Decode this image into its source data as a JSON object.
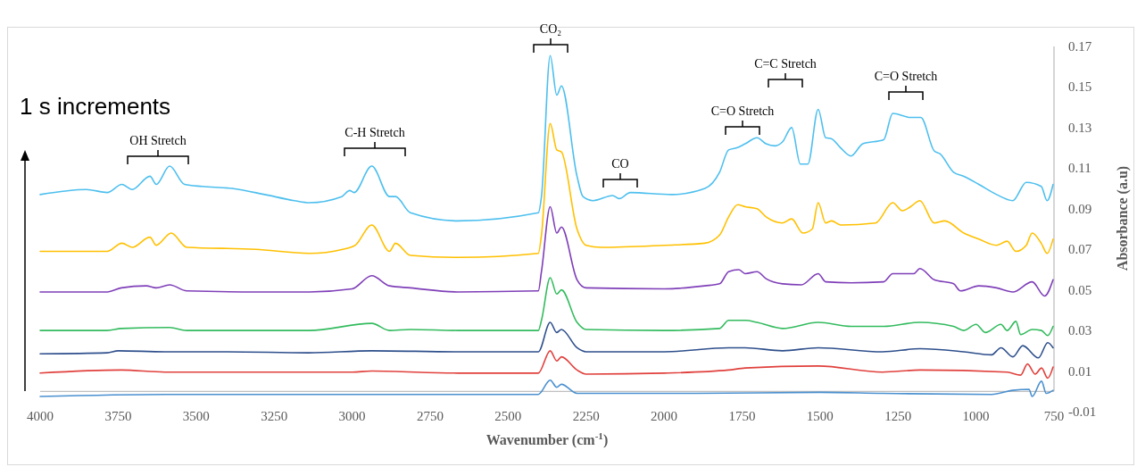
{
  "chart_data": {
    "type": "line",
    "xlabel": "Wavenumber (cm$^{-1}$)",
    "ylabel": "Absorbance (a.u)",
    "xlim": [
      4000,
      750
    ],
    "xticks": [
      4000,
      3750,
      3500,
      3250,
      3000,
      2750,
      2500,
      2250,
      2000,
      1750,
      1500,
      1250,
      1000,
      750
    ],
    "ylim": [
      -0.01,
      0.17
    ],
    "yticks": [
      -0.01,
      0.01,
      0.03,
      0.05,
      0.07,
      0.09,
      0.11,
      0.13,
      0.15,
      0.17
    ],
    "grid": false,
    "marker": "none",
    "line_style": "solid",
    "annotations": [
      "1 s increments",
      "OH Stretch",
      "C-H Stretch",
      "CO₂",
      "CO",
      "C=O Stretch",
      "C=C Stretch",
      "C=O Stretch"
    ],
    "series": [
      {
        "color": "#4dbfee",
        "x": [
          4000,
          3852,
          3785,
          3738,
          3705,
          3648,
          3628,
          3585,
          3537,
          3480,
          3385,
          3280,
          3185,
          3137,
          3033,
          3008,
          2994,
          2937,
          2880,
          2861,
          2813,
          2661,
          2403,
          2393,
          2365,
          2344,
          2329,
          2279,
          2260,
          2227,
          2165,
          2144,
          2108,
          1975,
          1869,
          1822,
          1793,
          1767,
          1740,
          1702,
          1673,
          1644,
          1620,
          1591,
          1563,
          1539,
          1506,
          1482,
          1463,
          1434,
          1401,
          1363,
          1296,
          1267,
          1210,
          1177,
          1134,
          1115,
          1072,
          1039,
          991,
          934,
          882,
          839,
          791,
          772,
          753
        ],
        "values": [
          0.097,
          0.0995,
          0.098,
          0.102,
          0.0995,
          0.106,
          0.102,
          0.111,
          0.102,
          0.101,
          0.1,
          0.097,
          0.094,
          0.093,
          0.096,
          0.099,
          0.098,
          0.111,
          0.096,
          0.096,
          0.088,
          0.084,
          0.088,
          0.096,
          0.1655,
          0.146,
          0.1505,
          0.106,
          0.096,
          0.094,
          0.0965,
          0.095,
          0.098,
          0.097,
          0.1,
          0.108,
          0.119,
          0.12,
          0.122,
          0.125,
          0.122,
          0.121,
          0.123,
          0.13,
          0.112,
          0.112,
          0.139,
          0.125,
          0.1245,
          0.12,
          0.116,
          0.122,
          0.124,
          0.137,
          0.135,
          0.135,
          0.1185,
          0.117,
          0.108,
          0.106,
          0.102,
          0.097,
          0.094,
          0.103,
          0.101,
          0.094,
          0.102
        ]
      },
      {
        "color": "#ffc000",
        "x": [
          4000,
          3785,
          3738,
          3705,
          3648,
          3628,
          3580,
          3530,
          3309,
          3137,
          3030,
          2990,
          2937,
          2880,
          2861,
          2813,
          2661,
          2403,
          2393,
          2365,
          2344,
          2329,
          2279,
          2250,
          2200,
          2000,
          1870,
          1822,
          1793,
          1764,
          1740,
          1702,
          1673,
          1620,
          1591,
          1555,
          1525,
          1506,
          1482,
          1463,
          1434,
          1322,
          1267,
          1236,
          1210,
          1180,
          1134,
          1100,
          1039,
          991,
          934,
          900,
          872,
          839,
          820,
          791,
          772,
          753
        ],
        "values": [
          0.069,
          0.069,
          0.073,
          0.071,
          0.076,
          0.072,
          0.078,
          0.071,
          0.07,
          0.068,
          0.07,
          0.072,
          0.082,
          0.069,
          0.073,
          0.067,
          0.066,
          0.068,
          0.077,
          0.132,
          0.119,
          0.118,
          0.08,
          0.072,
          0.071,
          0.072,
          0.073,
          0.077,
          0.086,
          0.092,
          0.091,
          0.09,
          0.086,
          0.083,
          0.085,
          0.078,
          0.08,
          0.093,
          0.083,
          0.084,
          0.082,
          0.083,
          0.093,
          0.089,
          0.091,
          0.094,
          0.083,
          0.084,
          0.078,
          0.075,
          0.072,
          0.074,
          0.069,
          0.072,
          0.078,
          0.073,
          0.068,
          0.075
        ]
      },
      {
        "color": "#7f3fb8",
        "x": [
          4000,
          3785,
          3740,
          3660,
          3628,
          3585,
          3530,
          3300,
          3137,
          3000,
          2937,
          2880,
          2813,
          2661,
          2403,
          2393,
          2365,
          2344,
          2329,
          2279,
          2250,
          2000,
          1870,
          1822,
          1793,
          1760,
          1740,
          1702,
          1673,
          1620,
          1560,
          1506,
          1482,
          1400,
          1296,
          1267,
          1200,
          1180,
          1134,
          1072,
          1050,
          991,
          934,
          882,
          820,
          780,
          753
        ],
        "values": [
          0.049,
          0.049,
          0.051,
          0.052,
          0.051,
          0.0525,
          0.0495,
          0.049,
          0.049,
          0.0505,
          0.057,
          0.052,
          0.051,
          0.049,
          0.0495,
          0.059,
          0.091,
          0.078,
          0.081,
          0.055,
          0.051,
          0.0505,
          0.052,
          0.053,
          0.059,
          0.06,
          0.058,
          0.059,
          0.0555,
          0.053,
          0.0525,
          0.058,
          0.054,
          0.0535,
          0.054,
          0.058,
          0.058,
          0.0605,
          0.055,
          0.053,
          0.0495,
          0.052,
          0.051,
          0.049,
          0.054,
          0.047,
          0.055
        ]
      },
      {
        "color": "#33bb5e",
        "x": [
          4000,
          3785,
          3740,
          3585,
          3530,
          3137,
          2937,
          2880,
          2813,
          2661,
          2403,
          2393,
          2365,
          2344,
          2329,
          2279,
          2250,
          2000,
          1822,
          1793,
          1760,
          1740,
          1702,
          1620,
          1506,
          1400,
          1296,
          1180,
          1072,
          1039,
          1000,
          970,
          920,
          900,
          872,
          857,
          820,
          790,
          770,
          753
        ],
        "values": [
          0.03,
          0.03,
          0.031,
          0.0315,
          0.03,
          0.03,
          0.0335,
          0.03,
          0.0305,
          0.03,
          0.03,
          0.035,
          0.056,
          0.048,
          0.05,
          0.034,
          0.0305,
          0.03,
          0.031,
          0.035,
          0.035,
          0.035,
          0.034,
          0.031,
          0.034,
          0.032,
          0.032,
          0.034,
          0.032,
          0.03,
          0.033,
          0.029,
          0.033,
          0.03,
          0.0345,
          0.028,
          0.0305,
          0.03,
          0.0275,
          0.032
        ]
      },
      {
        "color": "#2e4f8c",
        "x": [
          4000,
          3785,
          3750,
          3600,
          3400,
          3140,
          2937,
          2661,
          2403,
          2365,
          2344,
          2329,
          2279,
          2250,
          2000,
          1793,
          1740,
          1620,
          1506,
          1300,
          1180,
          1039,
          950,
          920,
          882,
          850,
          800,
          770,
          753
        ],
        "values": [
          0.0185,
          0.019,
          0.02,
          0.0195,
          0.0195,
          0.019,
          0.02,
          0.0195,
          0.0195,
          0.034,
          0.029,
          0.0305,
          0.0215,
          0.0195,
          0.0195,
          0.0215,
          0.0215,
          0.02,
          0.0215,
          0.0195,
          0.021,
          0.0195,
          0.018,
          0.0215,
          0.017,
          0.0225,
          0.0165,
          0.024,
          0.0215
        ]
      },
      {
        "color": "#e0403c",
        "x": [
          4000,
          3740,
          3600,
          3000,
          2937,
          2661,
          2403,
          2365,
          2344,
          2329,
          2279,
          2250,
          2000,
          1793,
          1740,
          1506,
          1300,
          1180,
          900,
          857,
          835,
          810,
          790,
          770,
          753
        ],
        "values": [
          0.009,
          0.0105,
          0.0095,
          0.0095,
          0.01,
          0.009,
          0.009,
          0.02,
          0.015,
          0.017,
          0.0105,
          0.0085,
          0.009,
          0.0105,
          0.0115,
          0.0125,
          0.0095,
          0.0105,
          0.0095,
          0.008,
          0.0135,
          0.0085,
          0.0115,
          0.0065,
          0.012
        ]
      },
      {
        "color": "#4a90d0",
        "x": [
          4000,
          3600,
          3000,
          2403,
          2365,
          2344,
          2329,
          2279,
          1900,
          1500,
          1300,
          950,
          882,
          830,
          820,
          790,
          775,
          753
        ],
        "values": [
          -0.0025,
          -0.0015,
          -0.0015,
          -0.0015,
          0.0055,
          0.002,
          0.0035,
          -0.001,
          -0.001,
          -0.0005,
          -0.001,
          -0.0015,
          0.0005,
          0.001,
          -0.0025,
          0.005,
          -0.001,
          0.0005
        ]
      }
    ]
  }
}
